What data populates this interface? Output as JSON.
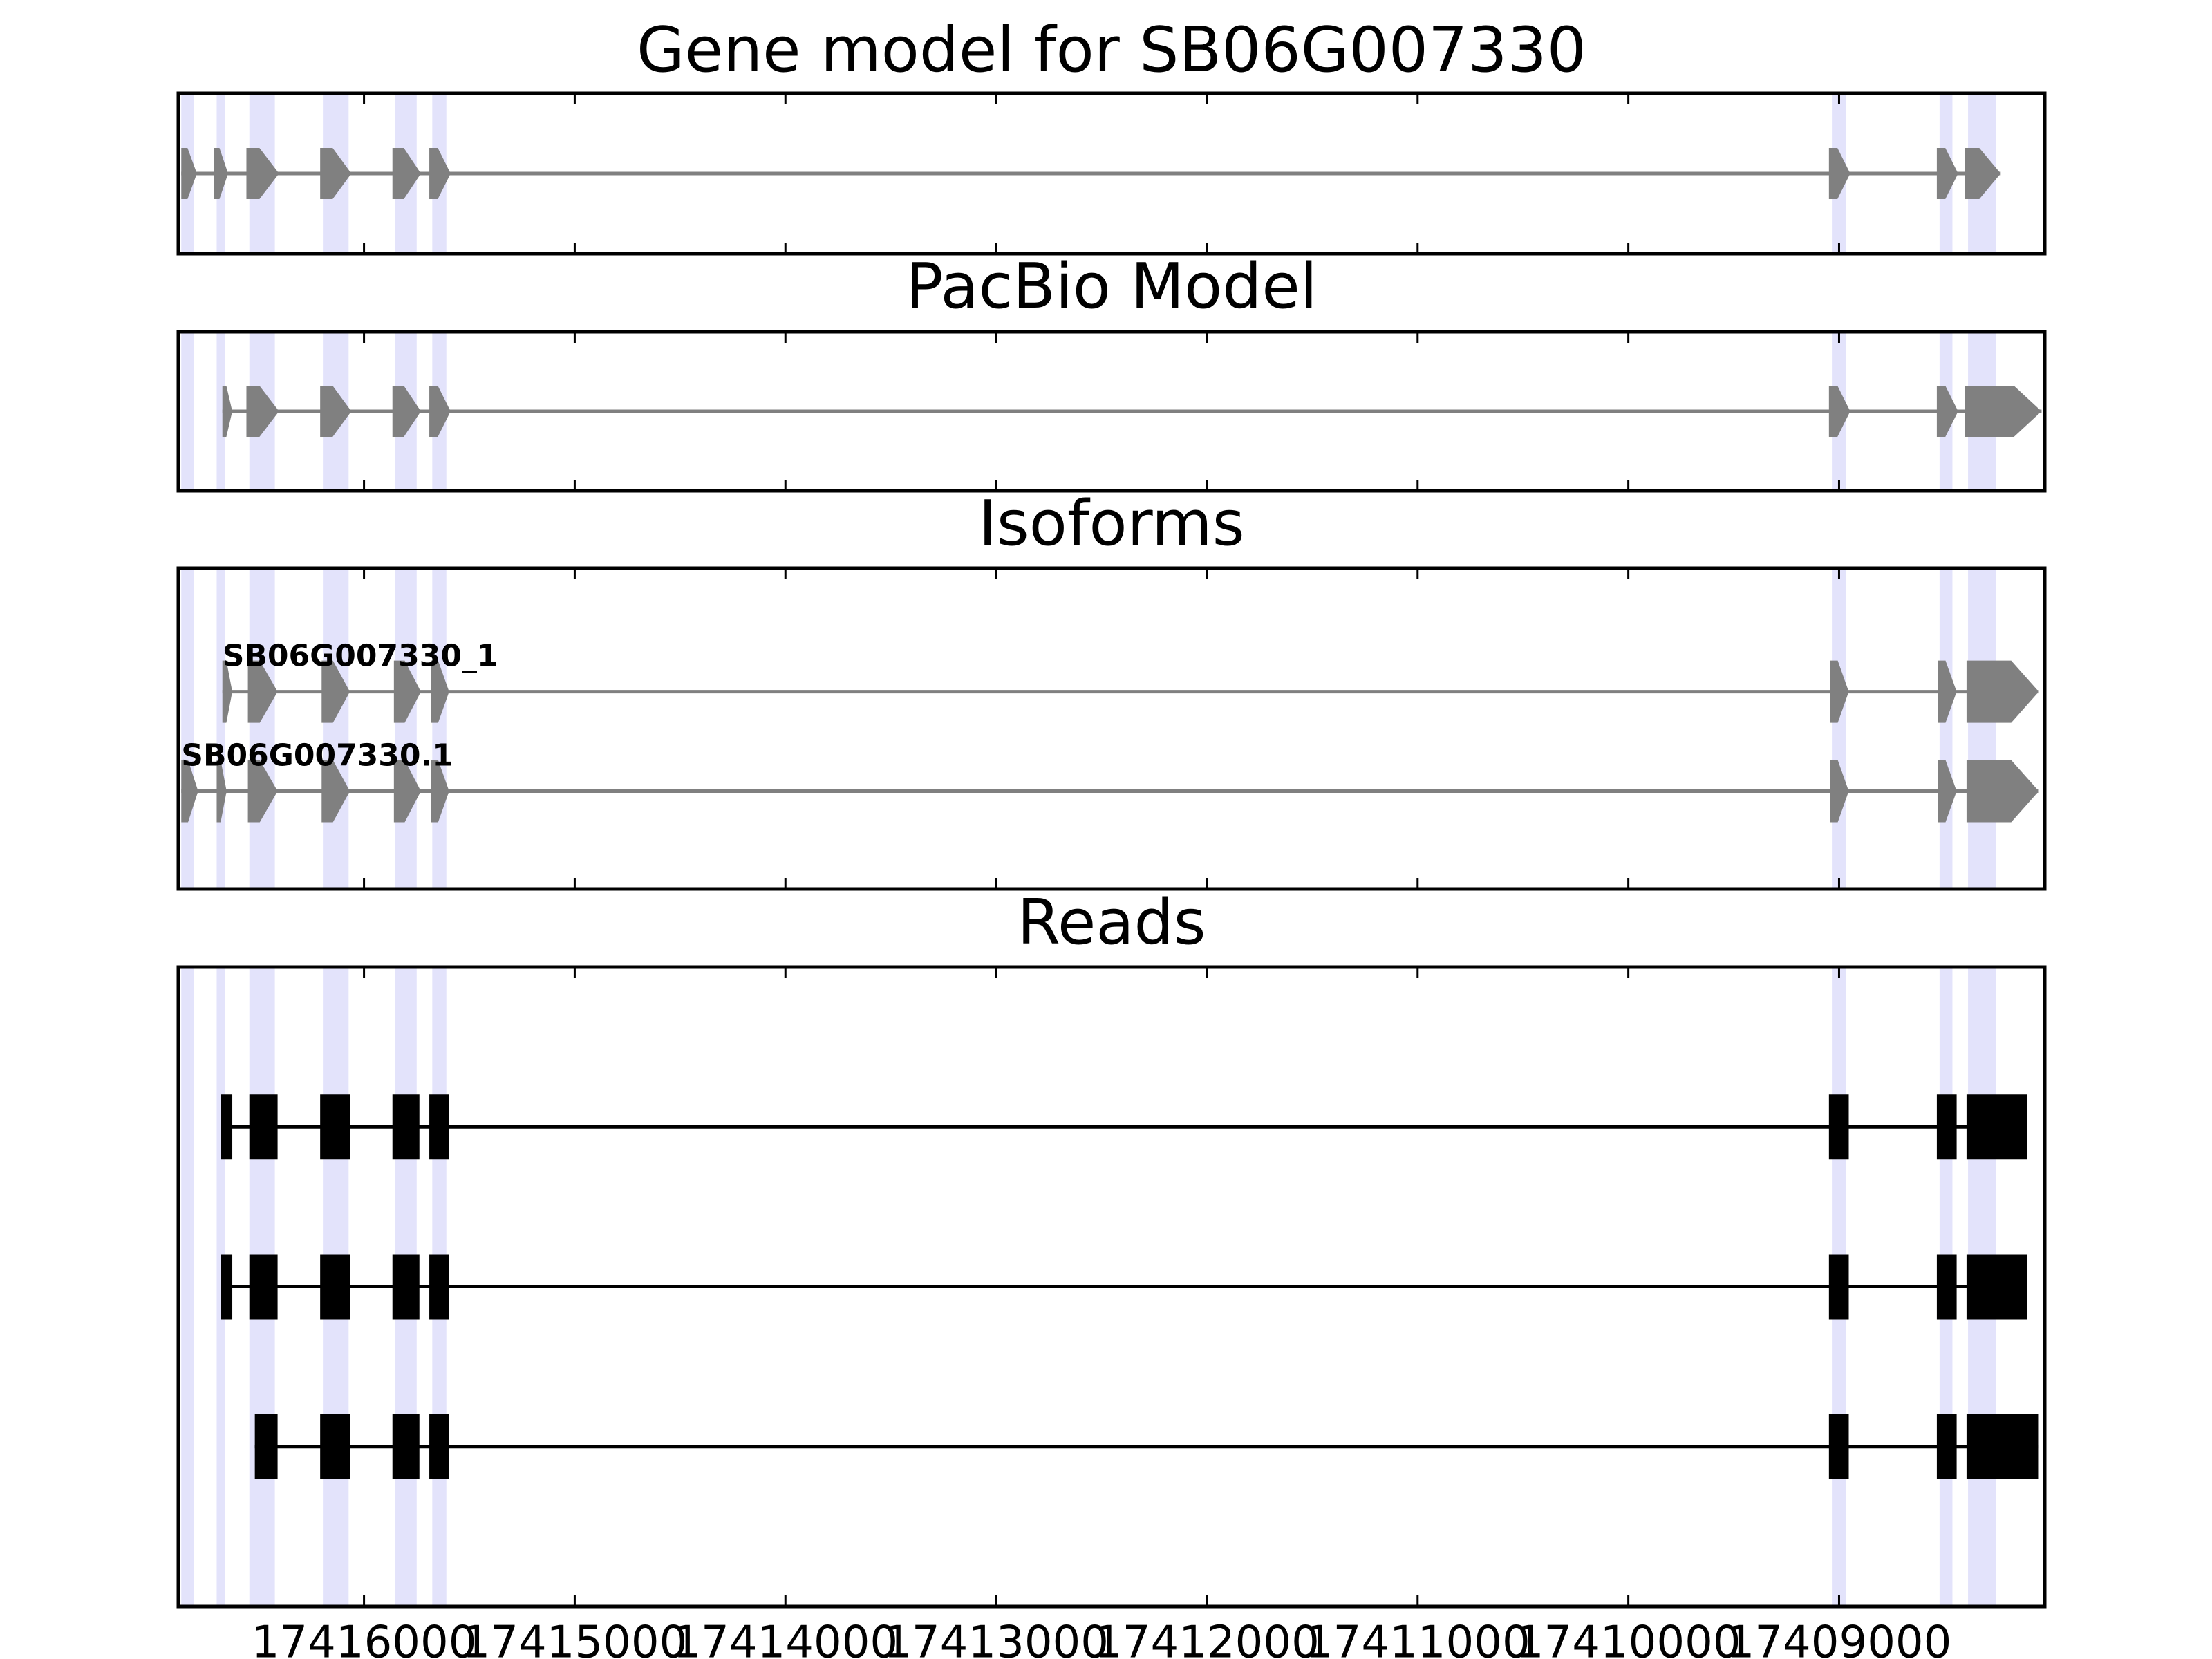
{
  "chart_data": {
    "type": "gene-tracks",
    "xlim": [
      17416881,
      17408024
    ],
    "xticks": [
      17416000,
      17415000,
      17414000,
      17413000,
      17412000,
      17411000,
      17410000,
      17409000
    ],
    "highlight_color": "#e3e3fb",
    "highlights": [
      [
        17416867,
        17416807
      ],
      [
        17416699,
        17416659
      ],
      [
        17416544,
        17416423
      ],
      [
        17416195,
        17416073
      ],
      [
        17415851,
        17415750
      ],
      [
        17415676,
        17415609
      ],
      [
        17409034,
        17408967
      ],
      [
        17408523,
        17408462
      ],
      [
        17408388,
        17408254
      ]
    ],
    "panels": [
      {
        "title": "Gene model for SB06G007330",
        "shape": "arrow",
        "color": "#808080",
        "tracks": [
          {
            "exons": [
              [
                17416867,
                17416793
              ],
              [
                17416713,
                17416645
              ],
              [
                17416558,
                17416403
              ],
              [
                17416208,
                17416060
              ],
              [
                17415865,
                17415730
              ],
              [
                17415690,
                17415589
              ],
              [
                17409048,
                17408947
              ],
              [
                17408536,
                17408435
              ],
              [
                17408402,
                17408233
              ]
            ]
          }
        ]
      },
      {
        "title": "PacBio Model",
        "shape": "arrow",
        "color": "#808080",
        "tracks": [
          {
            "exons": [
              [
                17416672,
                17416625
              ],
              [
                17416558,
                17416403
              ],
              [
                17416208,
                17416060
              ],
              [
                17415865,
                17415730
              ],
              [
                17415690,
                17415589
              ],
              [
                17409048,
                17408947
              ],
              [
                17408536,
                17408435
              ],
              [
                17408402,
                17408039
              ]
            ]
          }
        ]
      },
      {
        "title": "Isoforms",
        "shape": "arrow",
        "color": "#808080",
        "tracks": [
          {
            "label": "SB06G007330_1",
            "exons": [
              [
                17416672,
                17416625
              ],
              [
                17416551,
                17416410
              ],
              [
                17416201,
                17416067
              ],
              [
                17415858,
                17415730
              ],
              [
                17415683,
                17415596
              ],
              [
                17409041,
                17408954
              ],
              [
                17408530,
                17408442
              ],
              [
                17408395,
                17408052
              ]
            ]
          },
          {
            "label": "SB06G007330.1",
            "exons": [
              [
                17416867,
                17416787
              ],
              [
                17416699,
                17416652
              ],
              [
                17416551,
                17416410
              ],
              [
                17416201,
                17416067
              ],
              [
                17415858,
                17415730
              ],
              [
                17415683,
                17415596
              ],
              [
                17409041,
                17408954
              ],
              [
                17408530,
                17408442
              ],
              [
                17408395,
                17408052
              ]
            ]
          }
        ]
      },
      {
        "title": "Reads",
        "shape": "box",
        "color": "#000000",
        "tracks": [
          {
            "exons": [
              [
                17416679,
                17416625
              ],
              [
                17416544,
                17416410
              ],
              [
                17416208,
                17416067
              ],
              [
                17415865,
                17415737
              ],
              [
                17415690,
                17415596
              ],
              [
                17409048,
                17408954
              ],
              [
                17408536,
                17408442
              ],
              [
                17408395,
                17408106
              ]
            ]
          },
          {
            "exons": [
              [
                17416679,
                17416625
              ],
              [
                17416544,
                17416410
              ],
              [
                17416208,
                17416067
              ],
              [
                17415865,
                17415737
              ],
              [
                17415690,
                17415596
              ],
              [
                17409048,
                17408954
              ],
              [
                17408536,
                17408442
              ],
              [
                17408395,
                17408106
              ]
            ]
          },
          {
            "exons": [
              [
                17416518,
                17416410
              ],
              [
                17416208,
                17416067
              ],
              [
                17415865,
                17415737
              ],
              [
                17415690,
                17415596
              ],
              [
                17409048,
                17408954
              ],
              [
                17408536,
                17408442
              ],
              [
                17408395,
                17408052
              ]
            ]
          }
        ]
      }
    ]
  }
}
